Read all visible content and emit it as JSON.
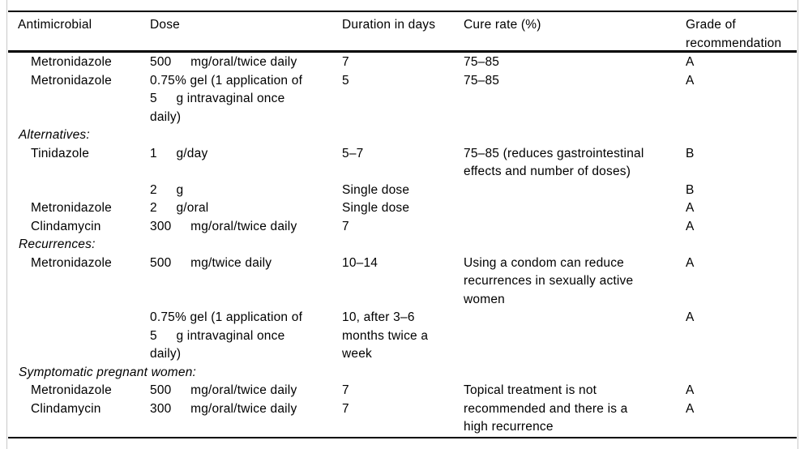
{
  "colors": {
    "rule": "#000000",
    "page_edge": "#c9c9c9",
    "text": "#000000",
    "background": "#ffffff"
  },
  "header": {
    "antimicrobial": "Antimicrobial",
    "dose": "Dose",
    "duration": "Duration in days",
    "cure_rate": "Cure rate (%)",
    "grade": "Grade of recommendation"
  },
  "lines": [
    {
      "antimicrobial": "Metronidazole",
      "dose": "500  mg/oral/twice daily",
      "duration": "7",
      "cure": "75–85",
      "grade": "A"
    },
    {
      "antimicrobial": "Metronidazole",
      "dose": "0.75% gel (1 application of",
      "duration": "5",
      "cure": "75–85",
      "grade": "A"
    },
    {
      "dose": "5  g intravaginal once"
    },
    {
      "dose": "daily)"
    },
    {
      "section": "Alternatives:"
    },
    {
      "antimicrobial": "Tinidazole",
      "dose": "1  g/day",
      "duration": "5–7",
      "cure": "75–85 (reduces gastrointestinal",
      "grade": "B"
    },
    {
      "cure": "effects and number of doses)"
    },
    {
      "dose": "2  g",
      "duration": "Single dose",
      "grade": "B"
    },
    {
      "antimicrobial": "Metronidazole",
      "dose": "2  g/oral",
      "duration": "Single dose",
      "grade": "A"
    },
    {
      "antimicrobial": "Clindamycin",
      "dose": "300  mg/oral/twice daily",
      "duration": "7",
      "grade": "A"
    },
    {
      "section": "Recurrences:"
    },
    {
      "antimicrobial": "Metronidazole",
      "dose": "500  mg/twice daily",
      "duration": "10–14",
      "cure": "Using a condom can reduce",
      "grade": "A"
    },
    {
      "cure": "recurrences in sexually active"
    },
    {
      "cure": "women"
    },
    {
      "dose": "0.75% gel (1 application of",
      "duration": "10, after 3–6",
      "grade": "A"
    },
    {
      "dose": "5  g intravaginal once",
      "duration": "months twice a"
    },
    {
      "dose": "daily)",
      "duration": "week"
    },
    {
      "section": "Symptomatic pregnant women:"
    },
    {
      "antimicrobial": "Metronidazole",
      "dose": "500  mg/oral/twice daily",
      "duration": "7",
      "cure": "Topical treatment is not",
      "grade": "A"
    },
    {
      "antimicrobial": "Clindamycin",
      "dose": "300  mg/oral/twice daily",
      "duration": "7",
      "cure": "recommended and there is a",
      "grade": "A"
    },
    {
      "cure": "high recurrence"
    }
  ]
}
